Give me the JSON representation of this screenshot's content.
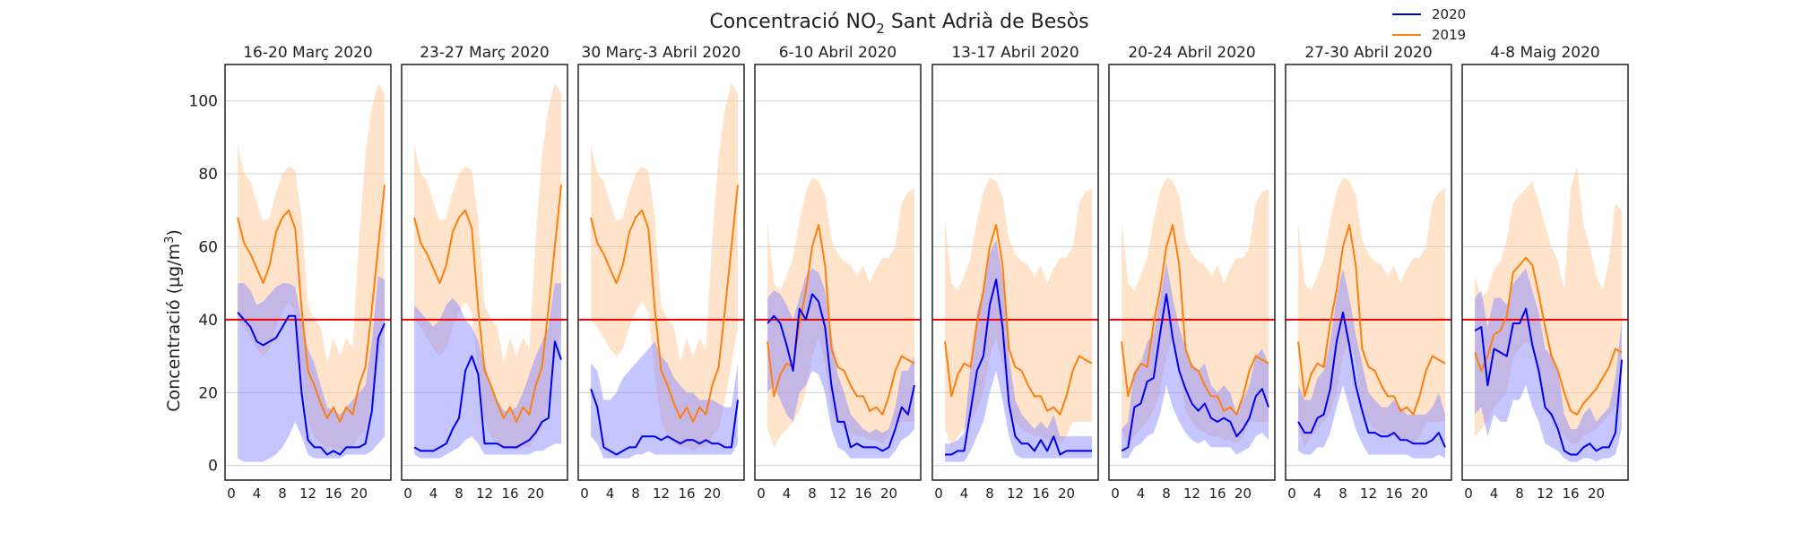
{
  "chart_data": {
    "type": "line",
    "title_main": "Concentració NO",
    "title_sub": "2",
    "title_rest": " Sant Adrià de Besòs",
    "ylabel": "Concentració (µg/m³)",
    "ylim": [
      -4,
      110
    ],
    "yticks": [
      0,
      20,
      40,
      60,
      80,
      100
    ],
    "xlim": [
      0,
      24
    ],
    "xticks": [
      0,
      4,
      8,
      12,
      16,
      20
    ],
    "threshold": 40,
    "legend": [
      {
        "name": "2020",
        "color": "#0000ee"
      },
      {
        "name": "2019",
        "color": "#ff7f0e"
      }
    ],
    "colors": {
      "s2020": "#0000ee",
      "s2019": "#ff7f0e",
      "threshold": "#ee0000",
      "band2020": "#8c8cff",
      "band2019": "#ffc896"
    },
    "panels": [
      {
        "title": "16-20 Març 2020",
        "s2020": [
          42,
          40,
          38,
          34,
          33,
          34,
          35,
          38,
          41,
          41,
          20,
          7,
          5,
          5,
          3,
          4,
          3,
          5,
          5,
          5,
          6,
          15,
          35,
          39
        ],
        "s2020_low": [
          2,
          1,
          1,
          1,
          1,
          2,
          3,
          5,
          8,
          12,
          8,
          3,
          2,
          2,
          2,
          2,
          2,
          3,
          3,
          3,
          3,
          4,
          6,
          8
        ],
        "s2020_high": [
          50,
          50,
          48,
          44,
          45,
          47,
          49,
          50,
          50,
          49,
          40,
          32,
          28,
          22,
          16,
          15,
          14,
          16,
          18,
          20,
          22,
          34,
          52,
          51
        ],
        "s2019": [
          68,
          61,
          58,
          54,
          50,
          55,
          64,
          68,
          70,
          65,
          43,
          26,
          22,
          17,
          13,
          16,
          12,
          16,
          14,
          22,
          27,
          43,
          60,
          77
        ],
        "s2019_low": [
          40,
          38,
          35,
          32,
          30,
          32,
          38,
          42,
          45,
          42,
          25,
          12,
          8,
          6,
          5,
          5,
          4,
          5,
          5,
          8,
          10,
          18,
          28,
          38
        ],
        "s2019_high": [
          88,
          80,
          78,
          72,
          67,
          68,
          75,
          80,
          82,
          81,
          68,
          44,
          40,
          38,
          28,
          35,
          30,
          35,
          32,
          62,
          85,
          98,
          105,
          102
        ]
      },
      {
        "title": "23-27 Març 2020",
        "s2020": [
          5,
          4,
          4,
          4,
          5,
          6,
          10,
          13,
          26,
          30,
          25,
          6,
          6,
          6,
          5,
          5,
          5,
          6,
          7,
          9,
          12,
          13,
          34,
          29
        ],
        "s2020_low": [
          3,
          2,
          2,
          2,
          2,
          3,
          4,
          5,
          7,
          8,
          6,
          3,
          3,
          3,
          3,
          3,
          3,
          3,
          3,
          4,
          4,
          5,
          6,
          6
        ],
        "s2020_high": [
          44,
          42,
          40,
          38,
          40,
          44,
          46,
          44,
          40,
          38,
          34,
          28,
          22,
          18,
          15,
          15,
          16,
          20,
          25,
          30,
          34,
          38,
          50,
          50
        ],
        "s2019": [
          68,
          61,
          58,
          54,
          50,
          55,
          64,
          68,
          70,
          65,
          43,
          26,
          22,
          17,
          13,
          16,
          12,
          16,
          14,
          22,
          27,
          43,
          60,
          77
        ],
        "s2019_low": [
          40,
          38,
          35,
          32,
          30,
          32,
          38,
          42,
          45,
          42,
          25,
          12,
          8,
          6,
          5,
          5,
          4,
          5,
          5,
          8,
          10,
          18,
          28,
          38
        ],
        "s2019_high": [
          88,
          80,
          78,
          72,
          67,
          68,
          75,
          80,
          82,
          81,
          68,
          44,
          40,
          38,
          28,
          35,
          30,
          35,
          32,
          62,
          85,
          98,
          105,
          102
        ]
      },
      {
        "title": "30 Març-3 Abril 2020",
        "s2020": [
          21,
          16,
          5,
          4,
          3,
          4,
          5,
          5,
          8,
          8,
          8,
          7,
          8,
          7,
          6,
          7,
          7,
          6,
          7,
          6,
          6,
          5,
          5,
          18
        ],
        "s2020_low": [
          8,
          6,
          2,
          2,
          2,
          2,
          2,
          3,
          3,
          4,
          3,
          3,
          3,
          3,
          3,
          3,
          3,
          3,
          3,
          3,
          3,
          3,
          3,
          6
        ],
        "s2020_high": [
          28,
          26,
          18,
          18,
          20,
          24,
          26,
          28,
          30,
          32,
          34,
          30,
          28,
          24,
          22,
          20,
          20,
          18,
          18,
          18,
          17,
          16,
          16,
          28
        ],
        "s2019": [
          68,
          61,
          58,
          54,
          50,
          55,
          64,
          68,
          70,
          65,
          43,
          26,
          22,
          17,
          13,
          16,
          12,
          16,
          14,
          22,
          27,
          43,
          60,
          77
        ],
        "s2019_low": [
          40,
          38,
          35,
          32,
          30,
          32,
          38,
          42,
          45,
          42,
          25,
          12,
          8,
          6,
          5,
          5,
          4,
          5,
          5,
          8,
          10,
          18,
          28,
          38
        ],
        "s2019_high": [
          88,
          80,
          78,
          72,
          67,
          68,
          75,
          80,
          82,
          81,
          68,
          44,
          40,
          38,
          28,
          35,
          30,
          35,
          32,
          62,
          85,
          98,
          105,
          102
        ]
      },
      {
        "title": "6-10 Abril 2020",
        "s2020": [
          39,
          41,
          39,
          33,
          26,
          43,
          40,
          47,
          45,
          38,
          22,
          12,
          12,
          5,
          6,
          5,
          5,
          5,
          4,
          5,
          10,
          16,
          14,
          22
        ],
        "s2020_low": [
          20,
          22,
          18,
          14,
          12,
          20,
          22,
          26,
          25,
          20,
          10,
          5,
          4,
          2,
          2,
          2,
          2,
          2,
          2,
          2,
          4,
          7,
          8,
          10
        ],
        "s2020_high": [
          46,
          48,
          47,
          44,
          40,
          46,
          52,
          54,
          53,
          48,
          36,
          25,
          20,
          14,
          12,
          10,
          9,
          10,
          9,
          10,
          16,
          26,
          26,
          30
        ],
        "s2019": [
          34,
          19,
          25,
          28,
          27,
          39,
          48,
          60,
          66,
          55,
          32,
          27,
          26,
          22,
          19,
          19,
          15,
          16,
          14,
          19,
          26,
          30,
          29,
          28
        ],
        "s2019_low": [
          10,
          5,
          8,
          10,
          12,
          15,
          20,
          30,
          35,
          28,
          15,
          12,
          10,
          9,
          8,
          8,
          7,
          7,
          6,
          8,
          12,
          12,
          12,
          12
        ],
        "s2019_high": [
          67,
          50,
          48,
          52,
          57,
          67,
          75,
          79,
          78,
          74,
          62,
          58,
          56,
          55,
          52,
          55,
          50,
          54,
          57,
          57,
          60,
          72,
          75,
          76
        ]
      },
      {
        "title": "13-17 Abril 2020",
        "s2020": [
          3,
          3,
          4,
          4,
          15,
          26,
          30,
          44,
          51,
          38,
          17,
          8,
          6,
          6,
          4,
          7,
          4,
          8,
          3,
          4,
          4,
          4,
          4,
          4
        ],
        "s2020_low": [
          1,
          1,
          1,
          1,
          4,
          8,
          12,
          20,
          26,
          18,
          8,
          3,
          2,
          2,
          2,
          2,
          2,
          2,
          2,
          2,
          2,
          2,
          2,
          2
        ],
        "s2020_high": [
          6,
          6,
          7,
          9,
          28,
          42,
          48,
          58,
          62,
          52,
          30,
          18,
          14,
          12,
          10,
          12,
          10,
          14,
          8,
          8,
          8,
          8,
          8,
          8
        ],
        "s2019": [
          34,
          19,
          25,
          28,
          27,
          39,
          48,
          60,
          66,
          55,
          32,
          27,
          26,
          22,
          19,
          19,
          15,
          16,
          14,
          19,
          26,
          30,
          29,
          28
        ],
        "s2019_low": [
          10,
          5,
          8,
          10,
          12,
          15,
          20,
          30,
          35,
          28,
          15,
          12,
          10,
          9,
          8,
          8,
          7,
          7,
          6,
          8,
          12,
          12,
          12,
          12
        ],
        "s2019_high": [
          67,
          50,
          48,
          52,
          57,
          67,
          75,
          79,
          78,
          74,
          62,
          58,
          56,
          55,
          52,
          55,
          50,
          54,
          57,
          57,
          60,
          72,
          75,
          76
        ]
      },
      {
        "title": "20-24 Abril 2020",
        "s2020": [
          4,
          5,
          16,
          17,
          23,
          24,
          36,
          47,
          35,
          26,
          21,
          17,
          15,
          17,
          13,
          12,
          13,
          12,
          8,
          10,
          13,
          19,
          21,
          16
        ],
        "s2020_low": [
          2,
          2,
          5,
          6,
          8,
          9,
          14,
          22,
          16,
          12,
          9,
          7,
          6,
          7,
          5,
          5,
          5,
          5,
          3,
          4,
          5,
          8,
          9,
          7
        ],
        "s2020_high": [
          10,
          12,
          26,
          28,
          34,
          36,
          46,
          56,
          46,
          38,
          32,
          28,
          26,
          28,
          22,
          20,
          22,
          20,
          14,
          18,
          22,
          30,
          32,
          28
        ],
        "s2019": [
          34,
          19,
          25,
          28,
          27,
          39,
          48,
          60,
          66,
          55,
          32,
          27,
          26,
          22,
          19,
          19,
          15,
          16,
          14,
          19,
          26,
          30,
          29,
          28
        ],
        "s2019_low": [
          10,
          5,
          8,
          10,
          12,
          15,
          20,
          30,
          35,
          28,
          15,
          12,
          10,
          9,
          8,
          8,
          7,
          7,
          6,
          8,
          12,
          12,
          12,
          12
        ],
        "s2019_high": [
          67,
          50,
          48,
          52,
          57,
          67,
          75,
          79,
          78,
          74,
          62,
          58,
          56,
          55,
          52,
          55,
          50,
          54,
          57,
          57,
          60,
          72,
          75,
          76
        ]
      },
      {
        "title": "27-30 Abril 2020",
        "s2020": [
          12,
          9,
          9,
          13,
          14,
          21,
          34,
          42,
          33,
          22,
          15,
          9,
          9,
          8,
          8,
          9,
          7,
          7,
          6,
          6,
          6,
          7,
          9,
          5
        ],
        "s2020_low": [
          4,
          3,
          3,
          5,
          5,
          9,
          16,
          22,
          16,
          10,
          6,
          3,
          3,
          3,
          3,
          3,
          3,
          3,
          2,
          2,
          2,
          2,
          3,
          2
        ],
        "s2020_high": [
          22,
          18,
          18,
          24,
          26,
          34,
          46,
          54,
          46,
          36,
          28,
          20,
          18,
          16,
          16,
          18,
          16,
          14,
          14,
          14,
          14,
          16,
          20,
          14
        ],
        "s2019": [
          34,
          19,
          25,
          28,
          27,
          39,
          48,
          60,
          66,
          55,
          32,
          27,
          26,
          22,
          19,
          19,
          15,
          16,
          14,
          19,
          26,
          30,
          29,
          28
        ],
        "s2019_low": [
          10,
          5,
          8,
          10,
          12,
          15,
          20,
          30,
          35,
          28,
          15,
          12,
          10,
          9,
          8,
          8,
          7,
          7,
          6,
          8,
          12,
          12,
          12,
          12
        ],
        "s2019_high": [
          67,
          50,
          48,
          52,
          57,
          67,
          75,
          79,
          78,
          74,
          62,
          58,
          56,
          55,
          52,
          55,
          50,
          54,
          57,
          57,
          60,
          72,
          75,
          76
        ]
      },
      {
        "title": "4-8 Maig 2020",
        "s2020": [
          37,
          38,
          22,
          32,
          31,
          30,
          39,
          39,
          43,
          33,
          26,
          16,
          14,
          10,
          4,
          3,
          3,
          5,
          6,
          4,
          5,
          5,
          9,
          29
        ],
        "s2020_low": [
          14,
          16,
          8,
          14,
          12,
          12,
          18,
          18,
          22,
          16,
          12,
          6,
          5,
          4,
          2,
          1,
          1,
          2,
          2,
          1,
          2,
          2,
          3,
          10
        ],
        "s2020_high": [
          46,
          48,
          38,
          46,
          46,
          44,
          50,
          52,
          54,
          48,
          42,
          32,
          30,
          26,
          14,
          10,
          10,
          14,
          16,
          12,
          14,
          16,
          24,
          40
        ],
        "s2019": [
          31,
          26,
          30,
          36,
          37,
          41,
          53,
          55,
          57,
          55,
          47,
          38,
          30,
          26,
          20,
          15,
          14,
          17,
          19,
          21,
          24,
          27,
          32,
          31
        ],
        "s2019_low": [
          8,
          10,
          12,
          16,
          18,
          20,
          30,
          32,
          34,
          32,
          24,
          18,
          14,
          10,
          8,
          6,
          6,
          8,
          9,
          10,
          12,
          14,
          16,
          16
        ],
        "s2019_high": [
          52,
          46,
          48,
          54,
          56,
          62,
          72,
          74,
          76,
          78,
          72,
          66,
          60,
          56,
          48,
          76,
          82,
          66,
          60,
          52,
          48,
          56,
          72,
          70
        ]
      }
    ]
  }
}
